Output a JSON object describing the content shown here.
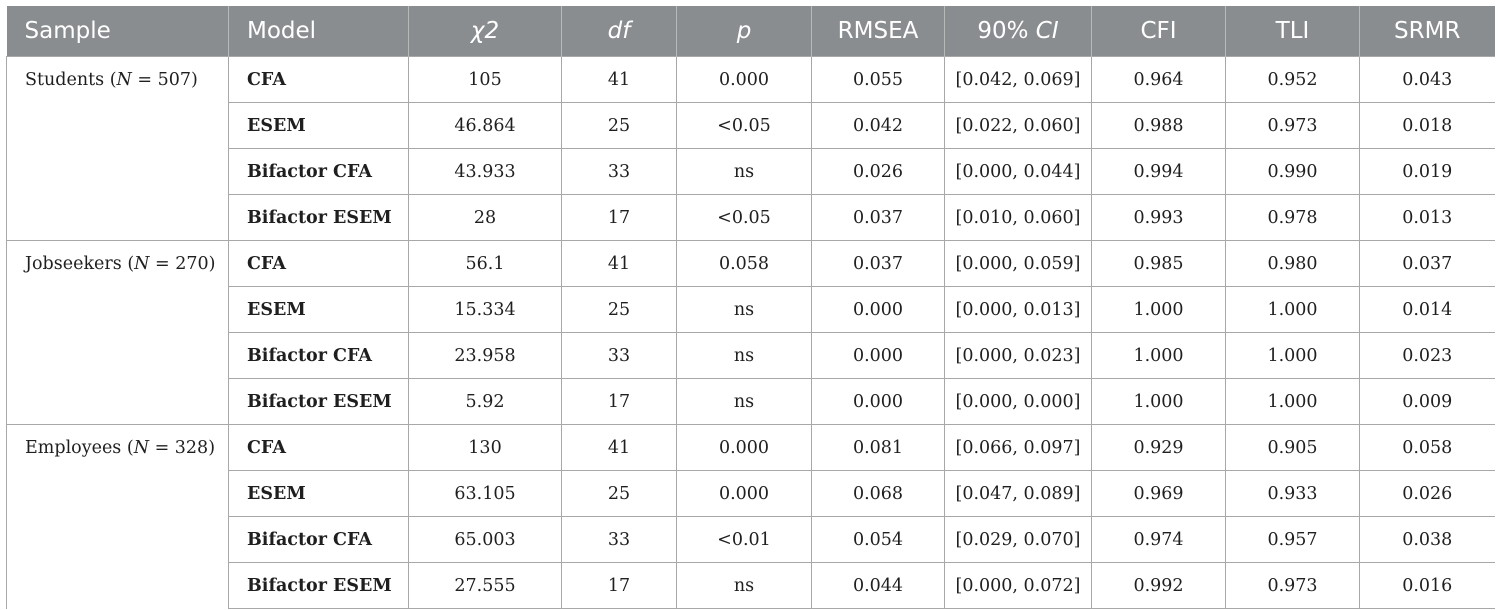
{
  "headers": [
    "Sample",
    "Model",
    "χ2",
    "df",
    "p",
    "RMSEA",
    "90% ",
    "CFI",
    "TLI",
    "SRMR"
  ],
  "header_ci_italic": "CI",
  "groups": [
    {
      "sample_pre": "Students (",
      "sample_n": "N",
      "sample_post": " = 507)",
      "rows": [
        [
          "CFA",
          "105",
          "41",
          "0.000",
          "0.055",
          "[0.042, 0.069]",
          "0.964",
          "0.952",
          "0.043"
        ],
        [
          "ESEM",
          "46.864",
          "25",
          "<0.05",
          "0.042",
          "[0.022, 0.060]",
          "0.988",
          "0.973",
          "0.018"
        ],
        [
          "Bifactor CFA",
          "43.933",
          "33",
          "ns",
          "0.026",
          "[0.000, 0.044]",
          "0.994",
          "0.990",
          "0.019"
        ],
        [
          "Bifactor ESEM",
          "28",
          "17",
          "<0.05",
          "0.037",
          "[0.010, 0.060]",
          "0.993",
          "0.978",
          "0.013"
        ]
      ]
    },
    {
      "sample_pre": "Jobseekers (",
      "sample_n": "N",
      "sample_post": " = 270)",
      "rows": [
        [
          "CFA",
          "56.1",
          "41",
          "0.058",
          "0.037",
          "[0.000, 0.059]",
          "0.985",
          "0.980",
          "0.037"
        ],
        [
          "ESEM",
          "15.334",
          "25",
          "ns",
          "0.000",
          "[0.000, 0.013]",
          "1.000",
          "1.000",
          "0.014"
        ],
        [
          "Bifactor CFA",
          "23.958",
          "33",
          "ns",
          "0.000",
          "[0.000, 0.023]",
          "1.000",
          "1.000",
          "0.023"
        ],
        [
          "Bifactor ESEM",
          "5.92",
          "17",
          "ns",
          "0.000",
          "[0.000, 0.000]",
          "1.000",
          "1.000",
          "0.009"
        ]
      ]
    },
    {
      "sample_pre": "Employees (",
      "sample_n": "N",
      "sample_post": " = 328)",
      "rows": [
        [
          "CFA",
          "130",
          "41",
          "0.000",
          "0.081",
          "[0.066, 0.097]",
          "0.929",
          "0.905",
          "0.058"
        ],
        [
          "ESEM",
          "63.105",
          "25",
          "0.000",
          "0.068",
          "[0.047, 0.089]",
          "0.969",
          "0.933",
          "0.026"
        ],
        [
          "Bifactor CFA",
          "65.003",
          "33",
          "<0.01",
          "0.054",
          "[0.029, 0.070]",
          "0.974",
          "0.957",
          "0.038"
        ],
        [
          "Bifactor ESEM",
          "27.555",
          "17",
          "ns",
          "0.044",
          "[0.000, 0.072]",
          "0.992",
          "0.973",
          "0.016"
        ]
      ]
    }
  ]
}
